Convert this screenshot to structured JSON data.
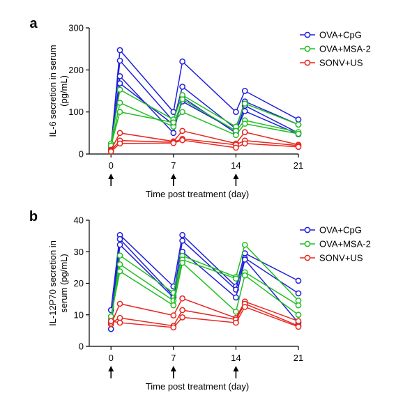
{
  "chart_data": [
    {
      "panel": "a",
      "type": "line",
      "ylabel_lines": [
        "IL-6 secretion in serum",
        "(pg/mL)"
      ],
      "xlabel": "Time post treatment (day)",
      "x_ticks": [
        0,
        7,
        14,
        21
      ],
      "y_ticks": [
        0,
        100,
        200,
        300
      ],
      "xlim": [
        -1.5,
        21
      ],
      "ylim": [
        0,
        300
      ],
      "treatment_days": [
        0,
        7,
        14
      ],
      "legend_position": "top-right",
      "series": [
        {
          "name": "OVA+CpG",
          "color": "#1f1fdc",
          "points": [
            [
              0,
              15
            ],
            [
              1,
              247
            ],
            [
              7,
              100
            ],
            [
              8,
              220
            ],
            [
              14,
              100
            ],
            [
              15,
              150
            ],
            [
              21,
              82
            ]
          ]
        },
        {
          "name": "",
          "color": "#1f1fdc",
          "points": [
            [
              0,
              20
            ],
            [
              1,
              222
            ],
            [
              7,
              78
            ],
            [
              8,
              160
            ],
            [
              14,
              60
            ],
            [
              15,
              125
            ],
            [
              21,
              70
            ]
          ]
        },
        {
          "name": "",
          "color": "#1f1fdc",
          "points": [
            [
              0,
              12
            ],
            [
              1,
              185
            ],
            [
              7,
              50
            ],
            [
              8,
              135
            ],
            [
              14,
              50
            ],
            [
              15,
              115
            ],
            [
              21,
              50
            ]
          ]
        },
        {
          "name": "",
          "color": "#1f1fdc",
          "points": [
            [
              0,
              18
            ],
            [
              1,
              168
            ],
            [
              7,
              70
            ],
            [
              8,
              125
            ],
            [
              14,
              55
            ],
            [
              15,
              102
            ],
            [
              21,
              47
            ]
          ]
        },
        {
          "name": "OVA+MSA-2",
          "color": "#22c022",
          "points": [
            [
              0,
              25
            ],
            [
              1,
              153
            ],
            [
              7,
              82
            ],
            [
              8,
              140
            ],
            [
              14,
              65
            ],
            [
              15,
              120
            ],
            [
              21,
              70
            ]
          ]
        },
        {
          "name": "",
          "color": "#22c022",
          "points": [
            [
              0,
              16
            ],
            [
              1,
              122
            ],
            [
              7,
              65
            ],
            [
              8,
              130
            ],
            [
              14,
              55
            ],
            [
              15,
              80
            ],
            [
              21,
              52
            ]
          ]
        },
        {
          "name": "",
          "color": "#22c022",
          "points": [
            [
              0,
              20
            ],
            [
              1,
              100
            ],
            [
              7,
              75
            ],
            [
              8,
              100
            ],
            [
              14,
              45
            ],
            [
              15,
              72
            ],
            [
              21,
              48
            ]
          ]
        },
        {
          "name": "SONV+US",
          "color": "#e8261e",
          "points": [
            [
              0,
              10
            ],
            [
              1,
              50
            ],
            [
              7,
              30
            ],
            [
              8,
              55
            ],
            [
              14,
              25
            ],
            [
              15,
              52
            ],
            [
              21,
              22
            ]
          ]
        },
        {
          "name": "",
          "color": "#e8261e",
          "points": [
            [
              0,
              8
            ],
            [
              1,
              32
            ],
            [
              7,
              28
            ],
            [
              8,
              36
            ],
            [
              14,
              22
            ],
            [
              15,
              32
            ],
            [
              21,
              20
            ]
          ]
        },
        {
          "name": "",
          "color": "#e8261e",
          "points": [
            [
              0,
              6
            ],
            [
              1,
              25
            ],
            [
              7,
              26
            ],
            [
              8,
              33
            ],
            [
              14,
              15
            ],
            [
              15,
              25
            ],
            [
              21,
              17
            ]
          ]
        }
      ]
    },
    {
      "panel": "b",
      "type": "line",
      "ylabel_lines": [
        "IL-12P70 secretion in",
        "serum (pg/mL)"
      ],
      "xlabel": "Time post treatment (day)",
      "x_ticks": [
        0,
        7,
        14,
        21
      ],
      "y_ticks": [
        0,
        10,
        20,
        30,
        40
      ],
      "xlim": [
        -1.5,
        21
      ],
      "ylim": [
        0,
        40
      ],
      "treatment_days": [
        0,
        7,
        14
      ],
      "legend_position": "top-right",
      "series": [
        {
          "name": "OVA+CpG",
          "color": "#1f1fdc",
          "points": [
            [
              0,
              11.5
            ],
            [
              1,
              35.3
            ],
            [
              7,
              19
            ],
            [
              8,
              35.3
            ],
            [
              14,
              19
            ],
            [
              15,
              29.5
            ],
            [
              21,
              20.8
            ]
          ]
        },
        {
          "name": "",
          "color": "#1f1fdc",
          "points": [
            [
              0,
              8
            ],
            [
              1,
              34
            ],
            [
              7,
              16
            ],
            [
              8,
              33.5
            ],
            [
              14,
              18
            ],
            [
              15,
              28
            ],
            [
              21,
              16.8
            ]
          ]
        },
        {
          "name": "",
          "color": "#1f1fdc",
          "points": [
            [
              0,
              5.5
            ],
            [
              1,
              32.2
            ],
            [
              7,
              15.5
            ],
            [
              8,
              30
            ],
            [
              14,
              15.5
            ],
            [
              15,
              27.5
            ],
            [
              21,
              7.5
            ]
          ]
        },
        {
          "name": "OVA+MSA-2",
          "color": "#22c022",
          "points": [
            [
              0,
              7.5
            ],
            [
              1,
              28.8
            ],
            [
              7,
              17
            ],
            [
              8,
              28.7
            ],
            [
              14,
              22
            ],
            [
              15,
              32.2
            ],
            [
              21,
              14.5
            ]
          ]
        },
        {
          "name": "",
          "color": "#22c022",
          "points": [
            [
              0,
              8.5
            ],
            [
              1,
              26
            ],
            [
              7,
              14.5
            ],
            [
              8,
              27.5
            ],
            [
              14,
              21.5
            ],
            [
              15,
              23.5
            ],
            [
              21,
              13
            ]
          ]
        },
        {
          "name": "",
          "color": "#22c022",
          "points": [
            [
              0,
              9.5
            ],
            [
              1,
              23.8
            ],
            [
              7,
              13
            ],
            [
              8,
              26.5
            ],
            [
              14,
              11
            ],
            [
              15,
              22.5
            ],
            [
              21,
              10
            ]
          ]
        },
        {
          "name": "SONV+US",
          "color": "#e8261e",
          "points": [
            [
              0,
              7
            ],
            [
              1,
              13.5
            ],
            [
              7,
              9.8
            ],
            [
              8,
              15.2
            ],
            [
              14,
              9
            ],
            [
              15,
              14.2
            ],
            [
              21,
              8
            ]
          ]
        },
        {
          "name": "",
          "color": "#e8261e",
          "points": [
            [
              0,
              7.5
            ],
            [
              1,
              9
            ],
            [
              7,
              6.5
            ],
            [
              8,
              11.5
            ],
            [
              14,
              8.5
            ],
            [
              15,
              13.5
            ],
            [
              21,
              6.5
            ]
          ]
        },
        {
          "name": "",
          "color": "#e8261e",
          "points": [
            [
              0,
              8
            ],
            [
              1,
              7.5
            ],
            [
              7,
              6
            ],
            [
              8,
              9.2
            ],
            [
              14,
              7.5
            ],
            [
              15,
              12.5
            ],
            [
              21,
              6.2
            ]
          ]
        }
      ]
    }
  ]
}
